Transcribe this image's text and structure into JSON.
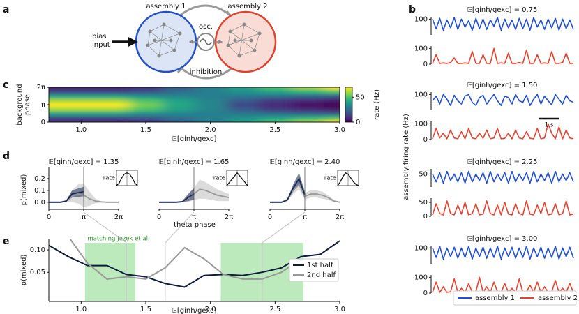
{
  "panel_labels": [
    "a",
    "b",
    "c",
    "d",
    "e"
  ],
  "diagram": {
    "assembly_1": "assembly 1",
    "assembly_2": "assembly 2",
    "oscillator": "osc.",
    "bias_input": [
      "bias",
      "input"
    ],
    "inhibition": "inhibition"
  },
  "chart_data": [
    {
      "type": "heatmap",
      "colormap": "viridis",
      "x": [
        0.75,
        1.0,
        1.25,
        1.5,
        1.75,
        2.0,
        2.25,
        2.5,
        2.75,
        3.0
      ],
      "y": [
        0,
        0.7854,
        1.5708,
        2.3562,
        3.1416,
        3.927,
        4.7124,
        5.4978,
        6.2832
      ],
      "z": [
        [
          5,
          5,
          5,
          10,
          20,
          30,
          40,
          50,
          60,
          70
        ],
        [
          15,
          15,
          15,
          18,
          25,
          30,
          35,
          40,
          45,
          50
        ],
        [
          40,
          40,
          40,
          35,
          32,
          30,
          28,
          25,
          22,
          20
        ],
        [
          60,
          60,
          60,
          50,
          40,
          32,
          20,
          12,
          8,
          5
        ],
        [
          70,
          70,
          70,
          55,
          42,
          32,
          15,
          8,
          3,
          0
        ],
        [
          60,
          60,
          60,
          50,
          40,
          32,
          20,
          12,
          8,
          5
        ],
        [
          40,
          40,
          40,
          35,
          32,
          30,
          28,
          25,
          22,
          20
        ],
        [
          15,
          15,
          15,
          18,
          25,
          30,
          35,
          40,
          45,
          50
        ],
        [
          5,
          5,
          5,
          10,
          20,
          30,
          40,
          50,
          60,
          70
        ]
      ],
      "xlim": [
        0.75,
        3.0
      ],
      "ylim": [
        0,
        6.2832
      ],
      "xticks": [
        {
          "value": 1,
          "label": "1.0"
        },
        1.5,
        {
          "value": 2,
          "label": "2.0"
        },
        2.5,
        {
          "value": 3,
          "label": "3.0"
        }
      ],
      "yticks": [
        0,
        {
          "value": 3.1416,
          "label": "π"
        },
        {
          "value": 6.2832,
          "label": "2π"
        }
      ],
      "xlabel": "𝔼[ginh/gexc]",
      "ylabel_lines": [
        "background",
        "phase"
      ],
      "zlim": [
        0,
        70
      ],
      "zticks": [
        0,
        50
      ],
      "zlabel": "rate (Hz)"
    },
    {
      "type": "traces",
      "ylabel": "assembly firing rate (Hz)",
      "scale_bar": "1 s",
      "series_names": [
        "assembly 1",
        "assembly 2"
      ],
      "colors": [
        "#1f4fd8",
        "#e8412c"
      ],
      "panels": [
        {
          "title": "𝔼[ginh/gexc] = 0.75",
          "traces": [
            {
              "ylim": [
                0,
                115
              ],
              "yticks": [
                100
              ],
              "values": [
                100,
                40,
                105,
                30,
                95,
                45,
                110,
                35,
                100,
                50,
                90,
                30,
                105,
                40,
                100,
                35,
                95,
                55,
                110,
                30,
                100,
                45,
                95,
                35,
                105,
                40,
                100,
                30,
                110,
                50,
                95,
                35,
                100,
                45,
                105,
                30,
                100,
                40,
                95,
                35
              ]
            },
            {
              "ylim": [
                0,
                115
              ],
              "yticks": [
                0,
                100
              ],
              "values": [
                5,
                60,
                5,
                8,
                5,
                10,
                40,
                5,
                5,
                8,
                5,
                80,
                5,
                5,
                60,
                5,
                5,
                100,
                5,
                8,
                5,
                70,
                5,
                5,
                10,
                5,
                90,
                5,
                5,
                60,
                5,
                8,
                5,
                80,
                5,
                5,
                10,
                70,
                5,
                5
              ]
            }
          ]
        },
        {
          "title": "𝔼[ginh/gexc] = 1.50",
          "traces": [
            {
              "ylim": [
                0,
                115
              ],
              "yticks": [
                100
              ],
              "values": [
                60,
                90,
                40,
                100,
                70,
                30,
                95,
                60,
                40,
                90,
                100,
                50,
                30,
                80,
                95,
                40,
                70,
                100,
                60,
                30,
                90,
                80,
                40,
                100,
                60,
                50,
                95,
                30,
                70,
                100,
                40,
                90,
                60,
                35,
                100,
                70,
                40,
                95,
                60,
                50
              ]
            },
            {
              "ylim": [
                0,
                115
              ],
              "yticks": [
                0,
                100
              ],
              "values": [
                5,
                70,
                10,
                40,
                5,
                60,
                10,
                5,
                50,
                5,
                70,
                10,
                5,
                40,
                8,
                60,
                5,
                10,
                70,
                5,
                8,
                40,
                5,
                60,
                10,
                5,
                50,
                8,
                5,
                70,
                5,
                10,
                100,
                40,
                5,
                80,
                5,
                60,
                10,
                5
              ]
            }
          ]
        },
        {
          "title": "𝔼[ginh/gexc] = 2.25",
          "traces": [
            {
              "ylim": [
                0,
                70
              ],
              "yticks": [
                50
              ],
              "values": [
                50,
                20,
                55,
                15,
                60,
                25,
                50,
                20,
                55,
                15,
                60,
                20,
                50,
                25,
                55,
                15,
                60,
                20,
                50,
                25,
                55,
                15,
                60,
                20,
                50,
                25,
                55,
                15,
                60,
                20,
                50,
                25,
                55,
                15,
                60,
                20,
                50,
                25,
                55,
                20
              ]
            },
            {
              "ylim": [
                0,
                65
              ],
              "yticks": [
                0,
                50
              ],
              "values": [
                5,
                45,
                10,
                5,
                55,
                10,
                5,
                40,
                8,
                50,
                5,
                10,
                45,
                5,
                8,
                55,
                10,
                5,
                40,
                5,
                50,
                8,
                5,
                45,
                10,
                5,
                55,
                8,
                5,
                40,
                10,
                50,
                5,
                8,
                45,
                5,
                10,
                55,
                5,
                8
              ]
            }
          ]
        },
        {
          "title": "𝔼[ginh/gexc] = 3.00",
          "traces": [
            {
              "ylim": [
                0,
                115
              ],
              "yticks": [
                100
              ],
              "values": [
                100,
                40,
                110,
                30,
                100,
                45,
                105,
                35,
                100,
                40,
                110,
                30,
                100,
                45,
                105,
                35,
                100,
                40,
                110,
                30,
                100,
                45,
                105,
                35,
                100,
                40,
                110,
                30,
                100,
                45,
                105,
                35,
                100,
                40,
                110,
                30,
                100,
                45,
                105,
                35
              ]
            },
            {
              "ylim": [
                0,
                115
              ],
              "yticks": [
                0,
                100
              ],
              "values": [
                5,
                70,
                5,
                40,
                5,
                8,
                90,
                5,
                30,
                5,
                60,
                5,
                8,
                100,
                5,
                40,
                5,
                70,
                8,
                5,
                60,
                5,
                30,
                5,
                90,
                5,
                8,
                50,
                5,
                70,
                5,
                40,
                5,
                8,
                80,
                5,
                30,
                5,
                60,
                5
              ]
            }
          ]
        }
      ]
    },
    {
      "type": "phase_lines",
      "xlabel": "theta phase",
      "ylabel": "p(mixed)",
      "x": [
        0,
        0.5236,
        1.0472,
        1.5708,
        2.0944,
        2.618,
        3.1416,
        3.6652,
        4.1888,
        4.7124,
        5.236,
        5.7596,
        6.2832
      ],
      "xlim": [
        0,
        6.2832
      ],
      "ylim": [
        -0.06,
        0.3
      ],
      "xticks": [
        0,
        {
          "value": 3.1416,
          "label": "π"
        },
        {
          "value": 6.2832,
          "label": "2π"
        }
      ],
      "yticks": [
        {
          "value": 0,
          "label": "0.0"
        },
        0.1,
        0.2
      ],
      "panels": [
        {
          "title": "𝔼[ginh/gexc] = 1.35",
          "inset": {
            "label": "rate",
            "ylim": [
              0,
              1.2
            ],
            "values": [
              0,
              0.2,
              0.6,
              0.9,
              1,
              0.9,
              0.6,
              0.2,
              0
            ]
          },
          "series": [
            {
              "color": "#999999",
              "values": [
                0,
                0,
                0,
                0.01,
                0.05,
                0.07,
                0.06,
                0.03,
                0.01,
                0.003,
                0,
                0,
                0
              ],
              "error": [
                0,
                0,
                0,
                0.01,
                0.05,
                0.08,
                0.1,
                0.06,
                0.02,
                0.005,
                0,
                0,
                0
              ]
            },
            {
              "color": "#1a2a55",
              "values": [
                0,
                0,
                0,
                0.01,
                0.07,
                0.08,
                0.09,
                null,
                null,
                null,
                null,
                null,
                null
              ],
              "error": [
                0,
                0,
                0,
                0.005,
                0.03,
                0.035,
                0.04,
                null,
                null,
                null,
                null,
                null,
                null
              ]
            }
          ]
        },
        {
          "title": "𝔼[ginh/gexc] = 1.65",
          "inset": {
            "label": "rate",
            "ylim": [
              0,
              1.2
            ],
            "values": [
              0,
              0.25,
              0.5,
              0.75,
              1,
              0.75,
              0.5,
              0.25,
              0
            ]
          },
          "series": [
            {
              "color": "#999999",
              "values": [
                0,
                0,
                0,
                0,
                0.005,
                0.03,
                0.07,
                0.11,
                0.1,
                0.08,
                0.06,
                0.05,
                0.04
              ],
              "error": [
                0,
                0,
                0,
                0,
                0.005,
                0.03,
                0.05,
                0.08,
                0.07,
                0.06,
                0.05,
                0.04,
                0.03
              ]
            },
            {
              "color": "#1a2a55",
              "values": [
                0,
                0,
                0,
                0,
                0.005,
                0.04,
                0.07,
                null,
                null,
                null,
                null,
                null,
                null
              ],
              "error": [
                0,
                0,
                0,
                0,
                0.005,
                0.03,
                0.05,
                null,
                null,
                null,
                null,
                null,
                null
              ]
            }
          ]
        },
        {
          "title": "𝔼[ginh/gexc] = 2.40",
          "inset": {
            "label": "rate",
            "ylim": [
              0,
              1.2
            ],
            "values": [
              0,
              0.3,
              0.7,
              1,
              0.9,
              0.6,
              0.3,
              0.1,
              0
            ]
          },
          "series": [
            {
              "color": "#999999",
              "values": [
                0,
                0,
                0,
                0.02,
                0.1,
                0.15,
                0.05,
                0.07,
                0.07,
                0.06,
                0.04,
                0.01,
                0
              ],
              "error": [
                0,
                0,
                0,
                0.01,
                0.03,
                0.04,
                0.03,
                0.03,
                0.03,
                0.03,
                0.02,
                0.01,
                0
              ]
            },
            {
              "color": "#1a2a55",
              "values": [
                0,
                0,
                0,
                0.02,
                0.12,
                0.2,
                0.06,
                null,
                null,
                null,
                null,
                null,
                null
              ],
              "error": [
                0,
                0,
                0,
                0.01,
                0.03,
                0.05,
                0.03,
                null,
                null,
                null,
                null,
                null,
                null
              ]
            }
          ]
        }
      ]
    },
    {
      "type": "line",
      "xlabel": "𝔼[ginh/gexc]",
      "ylabel": "p(mixed)",
      "legend": "center right",
      "x": [
        0.75,
        0.9,
        1.05,
        1.2,
        1.35,
        1.5,
        1.65,
        1.8,
        1.95,
        2.1,
        2.25,
        2.4,
        2.55,
        2.7,
        2.85,
        3.0
      ],
      "series": [
        {
          "name": "1st half",
          "color": "#0d1b3e",
          "values": [
            0.11,
            0.085,
            0.065,
            0.065,
            0.045,
            0.04,
            0.025,
            0.017,
            0.043,
            0.045,
            0.043,
            0.05,
            0.06,
            0.085,
            0.09,
            0.12
          ]
        },
        {
          "name": "2nd half",
          "color": "#999999",
          "values": [
            null,
            0.13,
            0.07,
            0.035,
            0.04,
            0.035,
            0.06,
            0.105,
            0.08,
            0.045,
            0.035,
            0.035,
            0.05,
            0.08,
            null,
            null
          ]
        }
      ],
      "xlim": [
        0.75,
        3.0
      ],
      "ylim": [
        -0.015,
        0.125
      ],
      "xticks": [
        {
          "value": 1,
          "label": "1.0"
        },
        1.5,
        {
          "value": 2,
          "label": "2.0"
        },
        2.5,
        {
          "value": 3,
          "label": "3.0"
        }
      ],
      "yticks": [
        0.05,
        {
          "value": 0.1,
          "label": "0.10"
        }
      ],
      "spans": [
        [
          1.03,
          1.42
        ],
        [
          2.08,
          2.72
        ]
      ],
      "span_label": "matching Jezek et al.",
      "span_color": "#8fdc8f",
      "highlights": [
        1.35,
        1.65,
        2.4
      ]
    }
  ]
}
